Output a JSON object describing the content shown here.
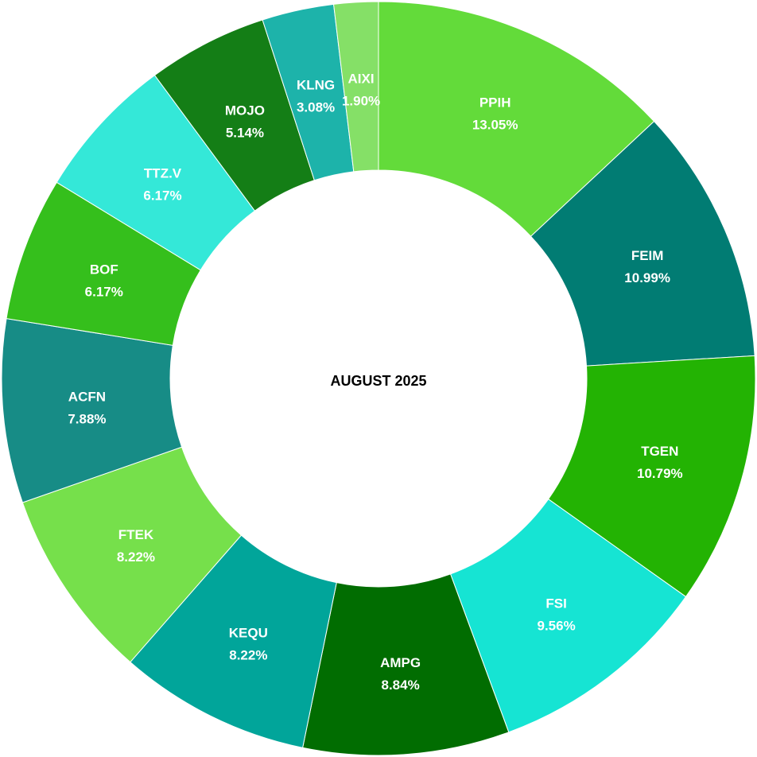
{
  "chart_data": {
    "type": "pie",
    "center_label": "AUGUST 2025",
    "slices": [
      {
        "label": "PPIH",
        "value": 13.05,
        "value_label": "13.05%",
        "color": "#63db3a"
      },
      {
        "label": "FEIM",
        "value": 10.99,
        "value_label": "10.99%",
        "color": "#017c73"
      },
      {
        "label": "TGEN",
        "value": 10.79,
        "value_label": "10.79%",
        "color": "#23b303"
      },
      {
        "label": "FSI",
        "value": 9.56,
        "value_label": "9.56%",
        "color": "#16e4d3"
      },
      {
        "label": "AMPG",
        "value": 8.84,
        "value_label": "8.84%",
        "color": "#016d01"
      },
      {
        "label": "KEQU",
        "value": 8.22,
        "value_label": "8.22%",
        "color": "#01a59a"
      },
      {
        "label": "FTEK",
        "value": 8.22,
        "value_label": "8.22%",
        "color": "#76e04b"
      },
      {
        "label": "ACFN",
        "value": 7.88,
        "value_label": "7.88%",
        "color": "#178c86"
      },
      {
        "label": "BOF",
        "value": 6.17,
        "value_label": "6.17%",
        "color": "#35bf1c"
      },
      {
        "label": "TTZ.V",
        "value": 6.17,
        "value_label": "6.17%",
        "color": "#34e8d8"
      },
      {
        "label": "MOJO",
        "value": 5.14,
        "value_label": "5.14%",
        "color": "#147e16"
      },
      {
        "label": "KLNG",
        "value": 3.08,
        "value_label": "3.08%",
        "color": "#1db3aa"
      },
      {
        "label": "AIXI",
        "value": 1.9,
        "value_label": "1.90%",
        "color": "#85e067"
      }
    ]
  }
}
